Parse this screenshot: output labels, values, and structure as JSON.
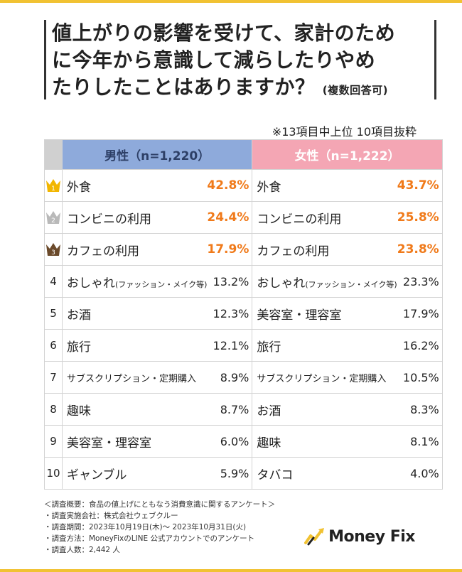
{
  "title": {
    "line1": "値上がりの影響を受けて、家計のため",
    "line2": "に今年から意識して減らしたりやめ",
    "line3": "たりしたことはありますか？",
    "sub": "(複数回答可)"
  },
  "note": "※13項目中上位 10項目抜粋",
  "colors": {
    "accent": "#f1c232",
    "male": "#8eaadb",
    "female": "#f4a6b4",
    "highlight": "#f07a1a"
  },
  "chart_data": {
    "type": "table",
    "title": "値上がりの影響を受けて、家計のために今年から意識して減らしたりやめたりしたことはありますか？(複数回答可)",
    "columns": [
      "男性（n=1,220）",
      "女性（n=1,222）"
    ],
    "rows": [
      {
        "rank": "1",
        "male_item": "外食",
        "male_pct": "42.8",
        "female_item": "外食",
        "female_pct": "43.7"
      },
      {
        "rank": "2",
        "male_item": "コンビニの利用",
        "male_pct": "24.4",
        "female_item": "コンビニの利用",
        "female_pct": "25.8"
      },
      {
        "rank": "3",
        "male_item": "カフェの利用",
        "male_pct": "17.9",
        "female_item": "カフェの利用",
        "female_pct": "23.8"
      },
      {
        "rank": "4",
        "male_item": "おしゃれ",
        "male_item_note": "(ファッション・メイク等)",
        "male_pct": "13.2",
        "female_item": "おしゃれ",
        "female_item_note": "(ファッション・メイク等)",
        "female_pct": "23.3"
      },
      {
        "rank": "5",
        "male_item": "お酒",
        "male_pct": "12.3",
        "female_item": "美容室・理容室",
        "female_pct": "17.9"
      },
      {
        "rank": "6",
        "male_item": "旅行",
        "male_pct": "12.1",
        "female_item": "旅行",
        "female_pct": "16.2"
      },
      {
        "rank": "7",
        "male_item": "サブスクリプション・定期購入",
        "male_pct": "8.9",
        "female_item": "サブスクリプション・定期購入",
        "female_pct": "10.5"
      },
      {
        "rank": "8",
        "male_item": "趣味",
        "male_pct": "8.7",
        "female_item": "お酒",
        "female_pct": "8.3"
      },
      {
        "rank": "9",
        "male_item": "美容室・理容室",
        "male_pct": "6.0",
        "female_item": "趣味",
        "female_pct": "8.1"
      },
      {
        "rank": "10",
        "male_item": "ギャンブル",
        "male_pct": "5.9",
        "female_item": "タバコ",
        "female_pct": "4.0"
      }
    ],
    "unit": "%"
  },
  "footer": {
    "line1": "＜調査概要：食品の値上げにともなう消費意識に関するアンケート＞",
    "line2": "・調査実施会社：株式会社ウェブクルー",
    "line3": "・調査期間：2023年10月19日(木)〜 2023年10月31日(火)",
    "line4": "・調査方法：MoneyFixのLINE 公式アカウントでのアンケート",
    "line5": "・調査人数：2,442 人"
  },
  "logo": {
    "text": "Money Fix"
  }
}
